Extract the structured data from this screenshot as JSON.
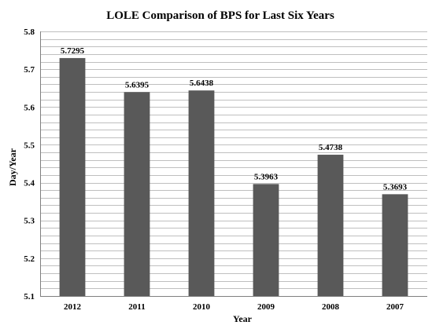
{
  "chart_data": {
    "type": "bar",
    "title": "LOLE Comparison of BPS for Last Six Years",
    "xlabel": "Year",
    "ylabel": "Day/Year",
    "categories": [
      "2012",
      "2011",
      "2010",
      "2009",
      "2008",
      "2007"
    ],
    "values": [
      5.7295,
      5.6395,
      5.6438,
      5.3963,
      5.4738,
      5.3693
    ],
    "data_labels": [
      "5.7295",
      "5.6395",
      "5.6438",
      "5.3963",
      "5.4738",
      "5.3693"
    ],
    "ylim": [
      5.1,
      5.8
    ],
    "yticks": [
      "5.1",
      "5.2",
      "5.3",
      "5.4",
      "5.5",
      "5.6",
      "5.7",
      "5.8"
    ],
    "minor_grid_step": 0.02,
    "grid": true,
    "legend": "none",
    "colors": {
      "bar": "#595959",
      "grid": "#bfbfbf",
      "axis": "#808080",
      "text": "#000000"
    }
  }
}
